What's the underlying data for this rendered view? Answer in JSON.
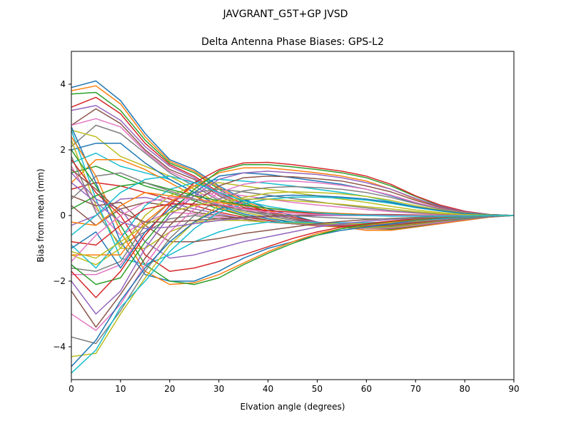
{
  "figure": {
    "suptitle": "JAVGRANT_G5T+GP JVSD"
  },
  "chart_data": {
    "type": "line",
    "title": "Delta Antenna Phase Biases: GPS-L2",
    "xlabel": "Elvation angle (degrees)",
    "ylabel": "Bias from mean (mm)",
    "xlim": [
      0,
      90
    ],
    "ylim": [
      -5,
      5
    ],
    "xticks": [
      0,
      10,
      20,
      30,
      40,
      50,
      60,
      70,
      80,
      90
    ],
    "yticks": [
      -4,
      -2,
      0,
      2,
      4
    ],
    "grid": false,
    "legend": "none",
    "x": [
      0,
      5,
      10,
      15,
      20,
      25,
      30,
      35,
      40,
      45,
      50,
      55,
      60,
      65,
      70,
      75,
      80,
      85,
      90
    ],
    "colors": [
      "#1f77b4",
      "#ff7f0e",
      "#2ca02c",
      "#d62728",
      "#9467bd",
      "#8c564b",
      "#e377c2",
      "#7f7f7f",
      "#bcbd22",
      "#17becf"
    ],
    "series": [
      {
        "values": [
          3.9,
          4.1,
          3.5,
          2.5,
          1.7,
          1.4,
          0.9,
          0.5,
          0.2,
          0.0,
          -0.2,
          -0.35,
          -0.45,
          -0.45,
          -0.35,
          -0.25,
          -0.15,
          -0.05,
          0
        ]
      },
      {
        "values": [
          3.8,
          3.95,
          3.4,
          2.4,
          1.65,
          1.35,
          0.85,
          0.45,
          0.15,
          -0.05,
          -0.2,
          -0.35,
          -0.45,
          -0.45,
          -0.35,
          -0.25,
          -0.15,
          -0.05,
          0
        ]
      },
      {
        "values": [
          3.7,
          3.75,
          3.2,
          2.3,
          1.6,
          1.3,
          0.8,
          0.4,
          0.1,
          -0.05,
          -0.2,
          -0.3,
          -0.4,
          -0.42,
          -0.33,
          -0.22,
          -0.12,
          -0.04,
          0
        ]
      },
      {
        "values": [
          3.3,
          3.6,
          3.1,
          2.2,
          1.55,
          1.2,
          0.7,
          0.35,
          0.1,
          -0.05,
          -0.2,
          -0.3,
          -0.4,
          -0.4,
          -0.32,
          -0.22,
          -0.12,
          -0.04,
          0
        ]
      },
      {
        "values": [
          3.2,
          3.35,
          2.9,
          2.1,
          1.5,
          1.15,
          0.65,
          0.3,
          0.05,
          -0.1,
          -0.2,
          -0.3,
          -0.4,
          -0.4,
          -0.32,
          -0.22,
          -0.12,
          -0.04,
          0
        ]
      },
      {
        "values": [
          2.75,
          3.25,
          2.8,
          2.0,
          1.4,
          1.1,
          0.6,
          0.25,
          0.05,
          -0.1,
          -0.25,
          -0.35,
          -0.4,
          -0.4,
          -0.32,
          -0.2,
          -0.1,
          -0.03,
          0
        ]
      },
      {
        "values": [
          2.75,
          2.95,
          2.7,
          1.95,
          1.35,
          1.0,
          0.5,
          0.2,
          0.0,
          -0.15,
          -0.25,
          -0.35,
          -0.4,
          -0.38,
          -0.3,
          -0.2,
          -0.1,
          -0.03,
          0
        ]
      },
      {
        "values": [
          2.1,
          2.75,
          2.5,
          1.9,
          1.3,
          0.9,
          0.45,
          0.15,
          0.0,
          -0.15,
          -0.25,
          -0.35,
          -0.38,
          -0.36,
          -0.28,
          -0.18,
          -0.1,
          -0.03,
          0
        ]
      },
      {
        "values": [
          2.6,
          2.4,
          1.8,
          1.5,
          1.2,
          0.8,
          0.35,
          0.1,
          -0.05,
          -0.2,
          -0.3,
          -0.35,
          -0.38,
          -0.35,
          -0.28,
          -0.18,
          -0.1,
          -0.03,
          0
        ]
      },
      {
        "values": [
          1.6,
          1.9,
          1.5,
          1.3,
          1.1,
          0.7,
          0.3,
          0.05,
          -0.1,
          -0.2,
          -0.3,
          -0.35,
          -0.36,
          -0.33,
          -0.26,
          -0.17,
          -0.09,
          -0.03,
          0
        ]
      },
      {
        "values": [
          2.0,
          2.2,
          2.2,
          1.6,
          1.1,
          0.7,
          0.3,
          0.05,
          -0.1,
          -0.2,
          -0.3,
          -0.35,
          -0.35,
          -0.33,
          -0.26,
          -0.17,
          -0.09,
          -0.03,
          0
        ]
      },
      {
        "values": [
          1.0,
          1.7,
          1.7,
          1.4,
          1.0,
          0.6,
          0.25,
          0.0,
          -0.15,
          -0.25,
          -0.32,
          -0.35,
          -0.35,
          -0.32,
          -0.25,
          -0.16,
          -0.08,
          -0.02,
          0
        ]
      },
      {
        "values": [
          1.3,
          1.5,
          1.2,
          0.9,
          0.7,
          0.45,
          0.2,
          0.0,
          -0.15,
          -0.25,
          -0.3,
          -0.33,
          -0.33,
          -0.3,
          -0.23,
          -0.15,
          -0.08,
          -0.02,
          0
        ]
      },
      {
        "values": [
          0.8,
          1.0,
          0.9,
          0.7,
          0.5,
          0.3,
          0.1,
          -0.05,
          -0.15,
          -0.25,
          -0.3,
          -0.32,
          -0.32,
          -0.28,
          -0.22,
          -0.14,
          -0.07,
          -0.02,
          0
        ]
      },
      {
        "values": [
          -0.3,
          0.0,
          0.5,
          0.55,
          0.4,
          0.2,
          0.05,
          -0.1,
          -0.2,
          -0.25,
          -0.3,
          -0.3,
          -0.3,
          -0.27,
          -0.2,
          -0.13,
          -0.07,
          -0.02,
          0
        ]
      },
      {
        "values": [
          0.3,
          -0.3,
          0.2,
          0.4,
          0.3,
          0.1,
          0.0,
          -0.1,
          -0.2,
          -0.25,
          -0.28,
          -0.3,
          -0.28,
          -0.25,
          -0.2,
          -0.12,
          -0.06,
          -0.02,
          0
        ]
      },
      {
        "values": [
          1.5,
          0.2,
          -0.6,
          -0.2,
          0.1,
          0.05,
          -0.05,
          -0.15,
          -0.2,
          -0.25,
          -0.28,
          -0.28,
          -0.27,
          -0.24,
          -0.18,
          -0.12,
          -0.06,
          -0.02,
          0
        ]
      },
      {
        "values": [
          1.8,
          0.1,
          -0.9,
          -0.5,
          -0.1,
          0.0,
          -0.1,
          -0.15,
          -0.2,
          -0.25,
          -0.27,
          -0.27,
          -0.26,
          -0.23,
          -0.18,
          -0.11,
          -0.06,
          -0.02,
          0
        ]
      },
      {
        "values": [
          2.3,
          0.3,
          -1.0,
          -1.0,
          -0.5,
          -0.2,
          -0.15,
          -0.15,
          -0.2,
          -0.22,
          -0.25,
          -0.25,
          -0.25,
          -0.22,
          -0.17,
          -0.1,
          -0.05,
          -0.02,
          0
        ]
      },
      {
        "values": [
          2.6,
          0.5,
          -1.3,
          -1.5,
          -1.2,
          -0.8,
          -0.5,
          -0.3,
          -0.2,
          -0.2,
          -0.22,
          -0.22,
          -0.22,
          -0.2,
          -0.15,
          -0.1,
          -0.05,
          -0.02,
          0
        ]
      },
      {
        "values": [
          2.7,
          1.0,
          -0.8,
          -1.8,
          -2.0,
          -2.0,
          -1.7,
          -1.3,
          -1.0,
          -0.8,
          -0.6,
          -0.45,
          -0.35,
          -0.25,
          -0.15,
          -0.08,
          -0.04,
          -0.01,
          0
        ]
      },
      {
        "values": [
          2.4,
          1.2,
          -0.5,
          -1.7,
          -2.1,
          -2.05,
          -1.8,
          -1.45,
          -1.1,
          -0.8,
          -0.55,
          -0.4,
          -0.3,
          -0.2,
          -0.13,
          -0.07,
          -0.03,
          -0.01,
          0
        ]
      },
      {
        "values": [
          2.0,
          0.9,
          -0.3,
          -1.5,
          -2.0,
          -2.1,
          -1.9,
          -1.5,
          -1.15,
          -0.85,
          -0.6,
          -0.4,
          -0.28,
          -0.18,
          -0.12,
          -0.07,
          -0.03,
          -0.01,
          0
        ]
      },
      {
        "values": [
          1.7,
          0.7,
          0.0,
          -1.2,
          -1.7,
          -1.6,
          -1.4,
          -1.2,
          -0.95,
          -0.7,
          -0.5,
          -0.35,
          -0.25,
          -0.17,
          -0.1,
          -0.06,
          -0.03,
          -0.01,
          0
        ]
      },
      {
        "values": [
          1.3,
          0.5,
          0.2,
          -0.8,
          -1.3,
          -1.2,
          -1.0,
          -0.8,
          -0.65,
          -0.5,
          -0.35,
          -0.25,
          -0.18,
          -0.12,
          -0.08,
          -0.04,
          -0.02,
          -0.01,
          0
        ]
      },
      {
        "values": [
          0.6,
          0.3,
          0.4,
          -0.3,
          -0.8,
          -0.8,
          -0.7,
          -0.55,
          -0.45,
          -0.35,
          -0.25,
          -0.18,
          -0.13,
          -0.09,
          -0.06,
          -0.03,
          -0.02,
          0,
          0
        ]
      },
      {
        "values": [
          -1.8,
          -1.8,
          -1.5,
          -0.5,
          0.2,
          0.6,
          0.7,
          0.6,
          0.5,
          0.4,
          0.32,
          0.25,
          0.18,
          0.12,
          0.07,
          0.04,
          0.02,
          0.01,
          0
        ]
      },
      {
        "values": [
          -1.6,
          -1.7,
          -1.4,
          -0.3,
          0.4,
          0.7,
          0.8,
          0.72,
          0.62,
          0.52,
          0.42,
          0.32,
          0.23,
          0.15,
          0.09,
          0.05,
          0.02,
          0.01,
          0
        ]
      },
      {
        "values": [
          -1.2,
          -1.5,
          -1.0,
          0.0,
          0.6,
          0.9,
          1.0,
          0.9,
          0.8,
          0.7,
          0.6,
          0.5,
          0.4,
          0.28,
          0.17,
          0.09,
          0.04,
          0.01,
          0
        ]
      },
      {
        "values": [
          -0.9,
          -1.6,
          -0.7,
          0.3,
          0.8,
          1.0,
          1.1,
          1.05,
          0.98,
          0.9,
          0.8,
          0.7,
          0.58,
          0.42,
          0.26,
          0.14,
          0.06,
          0.02,
          0
        ]
      },
      {
        "values": [
          -1.0,
          -0.5,
          -1.6,
          -0.5,
          0.2,
          0.7,
          1.2,
          1.3,
          1.25,
          1.15,
          1.05,
          0.95,
          0.8,
          0.6,
          0.38,
          0.2,
          0.08,
          0.02,
          0
        ]
      },
      {
        "values": [
          -1.2,
          -1.2,
          -1.2,
          -0.2,
          0.4,
          0.9,
          1.3,
          1.45,
          1.45,
          1.38,
          1.3,
          1.2,
          1.05,
          0.8,
          0.5,
          0.27,
          0.1,
          0.03,
          0
        ]
      },
      {
        "values": [
          -1.5,
          -2.1,
          -1.9,
          -0.8,
          0.1,
          0.8,
          1.35,
          1.55,
          1.55,
          1.48,
          1.4,
          1.3,
          1.15,
          0.9,
          0.58,
          0.3,
          0.12,
          0.03,
          0
        ]
      },
      {
        "values": [
          -1.7,
          -2.5,
          -1.7,
          -0.6,
          0.3,
          1.0,
          1.4,
          1.6,
          1.62,
          1.55,
          1.45,
          1.35,
          1.2,
          0.95,
          0.6,
          0.32,
          0.13,
          0.03,
          0
        ]
      },
      {
        "values": [
          -2.0,
          -3.0,
          -2.3,
          -1.0,
          0.0,
          0.6,
          1.1,
          1.3,
          1.35,
          1.3,
          1.25,
          1.15,
          1.0,
          0.8,
          0.52,
          0.28,
          0.11,
          0.03,
          0
        ]
      },
      {
        "values": [
          -2.3,
          -3.4,
          -2.4,
          -1.3,
          -0.3,
          0.4,
          0.9,
          1.15,
          1.2,
          1.18,
          1.12,
          1.05,
          0.9,
          0.72,
          0.46,
          0.25,
          0.1,
          0.03,
          0
        ]
      },
      {
        "values": [
          -3.0,
          -3.5,
          -2.7,
          -1.5,
          -0.5,
          0.2,
          0.7,
          0.95,
          1.05,
          1.05,
          1.0,
          0.92,
          0.8,
          0.62,
          0.4,
          0.22,
          0.09,
          0.02,
          0
        ]
      },
      {
        "values": [
          -3.7,
          -3.9,
          -2.9,
          -1.7,
          -0.7,
          0.0,
          0.5,
          0.75,
          0.85,
          0.88,
          0.85,
          0.8,
          0.7,
          0.55,
          0.36,
          0.2,
          0.08,
          0.02,
          0
        ]
      },
      {
        "values": [
          -4.3,
          -4.2,
          -3.0,
          -1.9,
          -0.9,
          -0.2,
          0.3,
          0.55,
          0.68,
          0.72,
          0.7,
          0.66,
          0.58,
          0.46,
          0.3,
          0.17,
          0.07,
          0.02,
          0
        ]
      },
      {
        "values": [
          -4.8,
          -4.1,
          -2.8,
          -2.0,
          -1.1,
          -0.4,
          0.1,
          0.35,
          0.5,
          0.56,
          0.56,
          0.53,
          0.47,
          0.37,
          0.24,
          0.14,
          0.06,
          0.02,
          0
        ]
      },
      {
        "values": [
          -4.6,
          -3.8,
          -2.6,
          -1.6,
          -0.8,
          -0.2,
          0.2,
          0.45,
          0.58,
          0.62,
          0.6,
          0.56,
          0.5,
          0.4,
          0.26,
          0.15,
          0.06,
          0.02,
          0
        ]
      },
      {
        "values": [
          -0.2,
          -0.3,
          0.3,
          0.7,
          0.6,
          0.5,
          0.4,
          0.3,
          0.22,
          0.15,
          0.1,
          0.06,
          0.03,
          0.01,
          0.0,
          0.0,
          0.0,
          0.0,
          0
        ]
      },
      {
        "values": [
          0.2,
          0.6,
          0.9,
          1.0,
          0.8,
          0.6,
          0.45,
          0.32,
          0.22,
          0.14,
          0.08,
          0.04,
          0.02,
          0.0,
          -0.01,
          -0.01,
          -0.01,
          0.0,
          0
        ]
      },
      {
        "values": [
          -0.8,
          -0.9,
          -0.3,
          0.2,
          0.35,
          0.35,
          0.3,
          0.22,
          0.15,
          0.1,
          0.06,
          0.03,
          0.01,
          0.0,
          0.0,
          0.0,
          0.0,
          0.0,
          0
        ]
      },
      {
        "values": [
          1.0,
          0.4,
          -0.2,
          -0.4,
          -0.35,
          -0.25,
          -0.15,
          -0.08,
          -0.04,
          -0.02,
          0.0,
          0.0,
          0.0,
          0.0,
          0.0,
          0.0,
          0.0,
          0.0,
          0
        ]
      },
      {
        "values": [
          1.4,
          0.8,
          0.1,
          -0.2,
          -0.2,
          -0.15,
          -0.1,
          -0.05,
          -0.02,
          0.0,
          0.02,
          0.03,
          0.03,
          0.03,
          0.02,
          0.01,
          0.0,
          0.0,
          0
        ]
      },
      {
        "values": [
          -1.4,
          -0.6,
          0.0,
          0.4,
          0.55,
          0.5,
          0.35,
          0.2,
          0.1,
          0.05,
          0.03,
          0.02,
          0.01,
          0.0,
          0.0,
          0.0,
          0.0,
          0.0,
          0
        ]
      },
      {
        "values": [
          0.5,
          1.2,
          1.3,
          1.0,
          0.75,
          0.5,
          0.3,
          0.15,
          0.05,
          0.0,
          -0.05,
          -0.08,
          -0.1,
          -0.1,
          -0.08,
          -0.05,
          -0.03,
          -0.01,
          0
        ]
      },
      {
        "values": [
          -1.1,
          -1.3,
          -0.8,
          -0.3,
          0.1,
          0.3,
          0.45,
          0.5,
          0.5,
          0.45,
          0.4,
          0.34,
          0.27,
          0.2,
          0.12,
          0.06,
          0.03,
          0.01,
          0
        ]
      },
      {
        "values": [
          -0.6,
          0.0,
          0.7,
          1.1,
          1.2,
          1.0,
          0.7,
          0.45,
          0.28,
          0.16,
          0.08,
          0.03,
          0.0,
          -0.02,
          -0.02,
          -0.02,
          -0.01,
          0.0,
          0
        ]
      }
    ]
  }
}
